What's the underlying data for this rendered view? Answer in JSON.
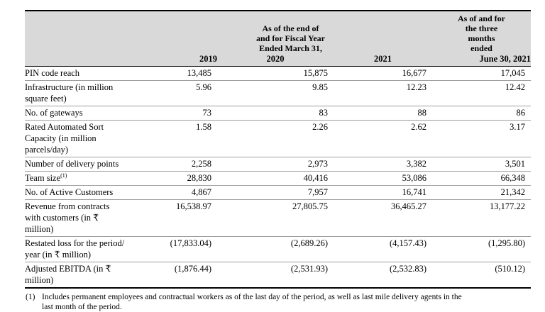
{
  "table": {
    "header": {
      "fiscal_group": "As of the end of\nand for Fiscal Year\nEnded March 31,",
      "q1_group": "As of and for\nthe three\nmonths\nended",
      "years": [
        "2019",
        "2020",
        "2021"
      ],
      "q1_year": "June 30, 2021"
    },
    "rows": [
      {
        "label": "PIN code reach",
        "values": [
          "13,485",
          "15,875",
          "16,677",
          "17,045"
        ]
      },
      {
        "label": "Infrastructure (in million\nsquare feet)",
        "values": [
          "5.96",
          "9.85",
          "12.23",
          "12.42"
        ]
      },
      {
        "label": "No. of gateways",
        "values": [
          "73",
          "83",
          "88",
          "86"
        ]
      },
      {
        "label": "Rated Automated Sort\nCapacity (in million\nparcels/day)",
        "values": [
          "1.58",
          "2.26",
          "2.62",
          "3.17"
        ]
      },
      {
        "label": "Number of delivery points",
        "values": [
          "2,258",
          "2,973",
          "3,382",
          "3,501"
        ]
      },
      {
        "label": "Team size",
        "label_sup": "(1)",
        "values": [
          "28,830",
          "40,416",
          "53,086",
          "66,348"
        ]
      },
      {
        "label": "No. of Active Customers",
        "values": [
          "4,867",
          "7,957",
          "16,741",
          "21,342"
        ]
      },
      {
        "label": "Revenue from contracts\nwith customers (in ₹\nmillion)",
        "values": [
          "16,538.97",
          "27,805.75",
          "36,465.27",
          "13,177.22"
        ]
      },
      {
        "label": "Restated loss for the period/\nyear (in ₹ million)",
        "values": [
          "(17,833.04)",
          "(2,689.26)",
          "(4,157.43)",
          "(1,295.80)"
        ]
      },
      {
        "label": "Adjusted EBITDA (in ₹\nmillion)",
        "values": [
          "(1,876.44)",
          "(2,531.93)",
          "(2,532.83)",
          "(510.12)"
        ]
      }
    ]
  },
  "footnote": {
    "marker": "(1)",
    "text": "Includes permanent employees and contractual workers as of the last day of the period, as well as last mile delivery agents in the\nlast month of the period."
  },
  "colors": {
    "header_bg": "#d9d9d9",
    "table_border": "#000000",
    "row_divider": "#9e9e9e"
  }
}
